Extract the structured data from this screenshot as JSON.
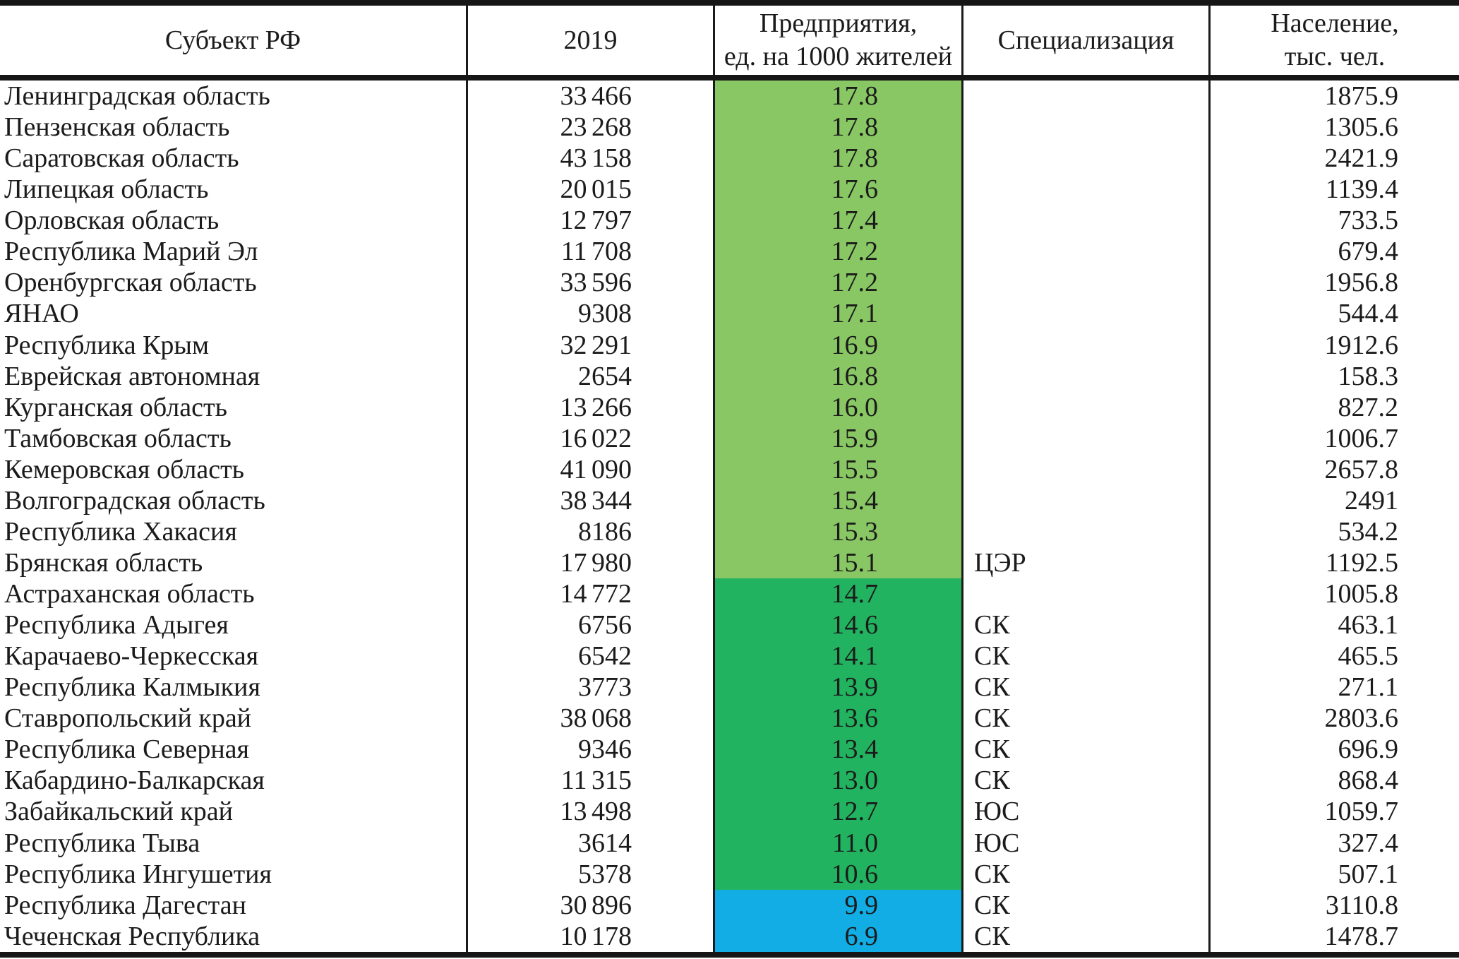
{
  "table": {
    "headers": [
      "Субъект РФ",
      "2019",
      "Предприятия,\nед. на 1000 жителей",
      "Специализация",
      "Население,\nтыс. чел."
    ],
    "colors": {
      "band_light": "#88C764",
      "band_mid": "#22B360",
      "band_blue": "#11ADE4",
      "rule": "#161616",
      "text": "#1B1B1B"
    },
    "rows": [
      {
        "subject": "Ленинградская область",
        "y2019": "33 466",
        "per_1000": "17.8",
        "specialization": "",
        "population": "1875.9",
        "band": "light"
      },
      {
        "subject": "Пензенская область",
        "y2019": "23 268",
        "per_1000": "17.8",
        "specialization": "",
        "population": "1305.6",
        "band": "light"
      },
      {
        "subject": "Саратовская область",
        "y2019": "43 158",
        "per_1000": "17.8",
        "specialization": "",
        "population": "2421.9",
        "band": "light"
      },
      {
        "subject": "Липецкая область",
        "y2019": "20 015",
        "per_1000": "17.6",
        "specialization": "",
        "population": "1139.4",
        "band": "light"
      },
      {
        "subject": "Орловская область",
        "y2019": "12 797",
        "per_1000": "17.4",
        "specialization": "",
        "population": "733.5",
        "band": "light"
      },
      {
        "subject": "Республика Марий Эл",
        "y2019": "11 708",
        "per_1000": "17.2",
        "specialization": "",
        "population": "679.4",
        "band": "light"
      },
      {
        "subject": "Оренбургская область",
        "y2019": "33 596",
        "per_1000": "17.2",
        "specialization": "",
        "population": "1956.8",
        "band": "light"
      },
      {
        "subject": "ЯНАО",
        "y2019": "9308",
        "per_1000": "17.1",
        "specialization": "",
        "population": "544.4",
        "band": "light"
      },
      {
        "subject": "Республика Крым",
        "y2019": "32 291",
        "per_1000": "16.9",
        "specialization": "",
        "population": "1912.6",
        "band": "light"
      },
      {
        "subject": "Еврейская автономная",
        "y2019": "2654",
        "per_1000": "16.8",
        "specialization": "",
        "population": "158.3",
        "band": "light"
      },
      {
        "subject": "Курганская область",
        "y2019": "13 266",
        "per_1000": "16.0",
        "specialization": "",
        "population": "827.2",
        "band": "light"
      },
      {
        "subject": "Тамбовская область",
        "y2019": "16 022",
        "per_1000": "15.9",
        "specialization": "",
        "population": "1006.7",
        "band": "light"
      },
      {
        "subject": "Кемеровская область",
        "y2019": "41 090",
        "per_1000": "15.5",
        "specialization": "",
        "population": "2657.8",
        "band": "light"
      },
      {
        "subject": "Волгоградская область",
        "y2019": "38 344",
        "per_1000": "15.4",
        "specialization": "",
        "population": "2491",
        "band": "light"
      },
      {
        "subject": "Республика Хакасия",
        "y2019": "8186",
        "per_1000": "15.3",
        "specialization": "",
        "population": "534.2",
        "band": "light"
      },
      {
        "subject": "Брянская область",
        "y2019": "17 980",
        "per_1000": "15.1",
        "specialization": "ЦЭР",
        "population": "1192.5",
        "band": "light"
      },
      {
        "subject": "Астраханская область",
        "y2019": "14 772",
        "per_1000": "14.7",
        "specialization": "",
        "population": "1005.8",
        "band": "mid"
      },
      {
        "subject": "Республика Адыгея",
        "y2019": "6756",
        "per_1000": "14.6",
        "specialization": "СК",
        "population": "463.1",
        "band": "mid"
      },
      {
        "subject": "Карачаево-Черкесская",
        "y2019": "6542",
        "per_1000": "14.1",
        "specialization": "СК",
        "population": "465.5",
        "band": "mid"
      },
      {
        "subject": "Республика Калмыкия",
        "y2019": "3773",
        "per_1000": "13.9",
        "specialization": "СК",
        "population": "271.1",
        "band": "mid"
      },
      {
        "subject": "Ставропольский край",
        "y2019": "38 068",
        "per_1000": "13.6",
        "specialization": "СК",
        "population": "2803.6",
        "band": "mid"
      },
      {
        "subject": "Республика Северная",
        "y2019": "9346",
        "per_1000": "13.4",
        "specialization": "СК",
        "population": "696.9",
        "band": "mid"
      },
      {
        "subject": "Кабардино-Балкарская",
        "y2019": "11 315",
        "per_1000": "13.0",
        "specialization": "СК",
        "population": "868.4",
        "band": "mid"
      },
      {
        "subject": "Забайкальский край",
        "y2019": "13 498",
        "per_1000": "12.7",
        "specialization": "ЮС",
        "population": "1059.7",
        "band": "mid"
      },
      {
        "subject": "Республика Тыва",
        "y2019": "3614",
        "per_1000": "11.0",
        "specialization": "ЮС",
        "population": "327.4",
        "band": "mid"
      },
      {
        "subject": "Республика Ингушетия",
        "y2019": "5378",
        "per_1000": "10.6",
        "specialization": "СК",
        "population": "507.1",
        "band": "mid"
      },
      {
        "subject": "Республика Дагестан",
        "y2019": "30 896",
        "per_1000": "9.9",
        "specialization": "СК",
        "population": "3110.8",
        "band": "blue"
      },
      {
        "subject": "Чеченская Республика",
        "y2019": "10 178",
        "per_1000": "6.9",
        "specialization": "СК",
        "population": "1478.7",
        "band": "blue"
      }
    ]
  }
}
